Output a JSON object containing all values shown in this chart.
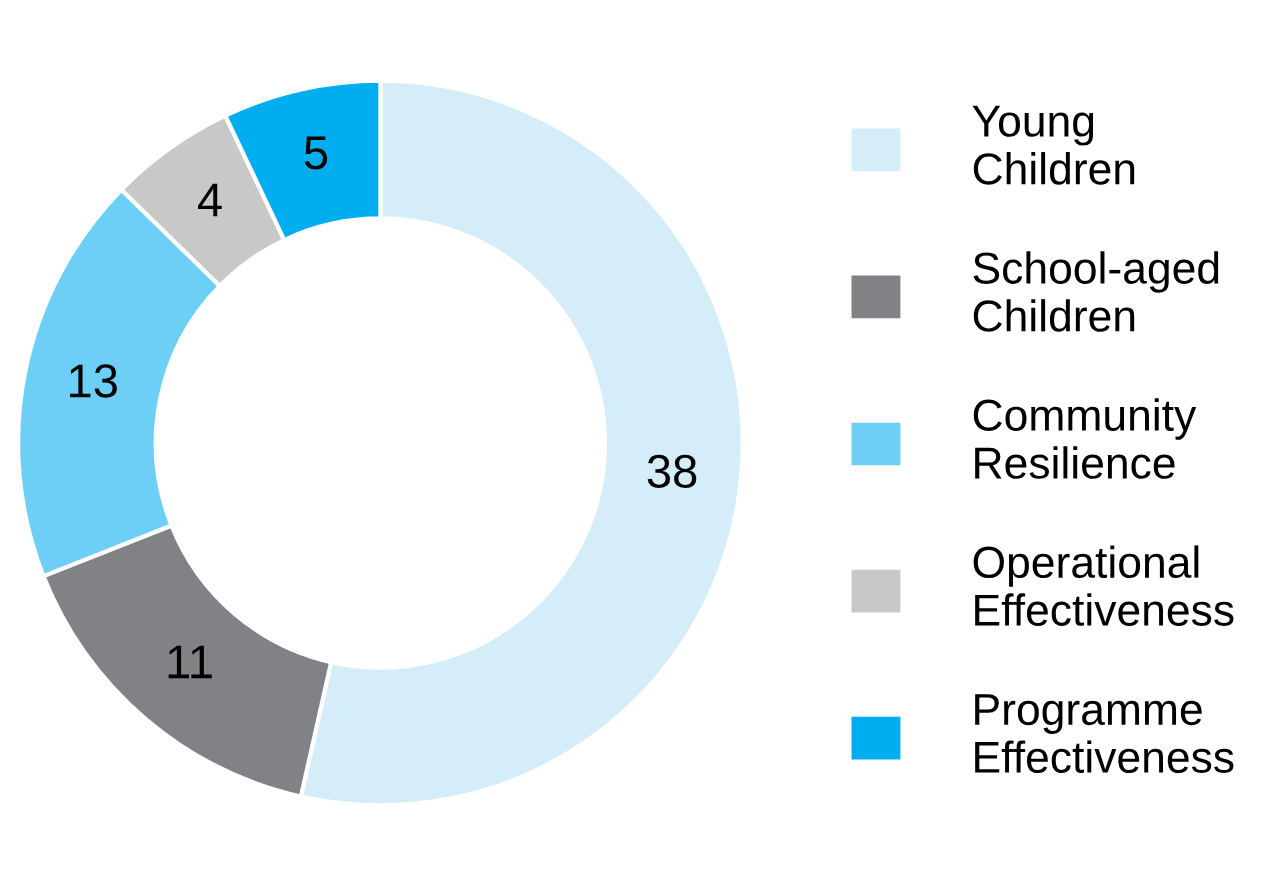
{
  "chart_data": {
    "type": "donut",
    "categories": [
      "Young Children",
      "School-aged Children",
      "Community Resilience",
      "Operational Effectiveness",
      "Programme Effectiveness"
    ],
    "values": [
      38,
      11,
      13,
      4,
      5
    ],
    "colors": [
      "#d4edf9",
      "#808285",
      "#6dcff6",
      "#c8c8c8",
      "#00aeef"
    ],
    "data_labels": true,
    "legend": "right"
  }
}
